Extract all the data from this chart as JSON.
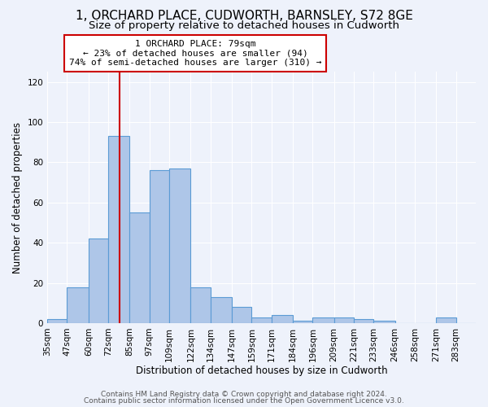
{
  "title": "1, ORCHARD PLACE, CUDWORTH, BARNSLEY, S72 8GE",
  "subtitle": "Size of property relative to detached houses in Cudworth",
  "xlabel": "Distribution of detached houses by size in Cudworth",
  "ylabel": "Number of detached properties",
  "bar_labels": [
    "35sqm",
    "47sqm",
    "60sqm",
    "72sqm",
    "85sqm",
    "97sqm",
    "109sqm",
    "122sqm",
    "134sqm",
    "147sqm",
    "159sqm",
    "171sqm",
    "184sqm",
    "196sqm",
    "209sqm",
    "221sqm",
    "233sqm",
    "246sqm",
    "258sqm",
    "271sqm",
    "283sqm"
  ],
  "bar_values": [
    2,
    18,
    42,
    93,
    55,
    76,
    77,
    18,
    13,
    8,
    3,
    4,
    1,
    3,
    3,
    2,
    1,
    0,
    0,
    3,
    0
  ],
  "bar_color": "#aec6e8",
  "bar_edge_color": "#5b9bd5",
  "red_line_x": 79,
  "annotation_title": "1 ORCHARD PLACE: 79sqm",
  "annotation_line1": "← 23% of detached houses are smaller (94)",
  "annotation_line2": "74% of semi-detached houses are larger (310) →",
  "annotation_box_color": "#ffffff",
  "annotation_box_edge_color": "#cc0000",
  "red_line_color": "#cc0000",
  "footer1": "Contains HM Land Registry data © Crown copyright and database right 2024.",
  "footer2": "Contains public sector information licensed under the Open Government Licence v3.0.",
  "ylim": [
    0,
    125
  ],
  "yticks": [
    0,
    20,
    40,
    60,
    80,
    100,
    120
  ],
  "background_color": "#eef2fb",
  "grid_color": "#ffffff",
  "title_fontsize": 11,
  "subtitle_fontsize": 9.5,
  "axis_label_fontsize": 8.5,
  "tick_fontsize": 7.5,
  "footer_fontsize": 6.5
}
